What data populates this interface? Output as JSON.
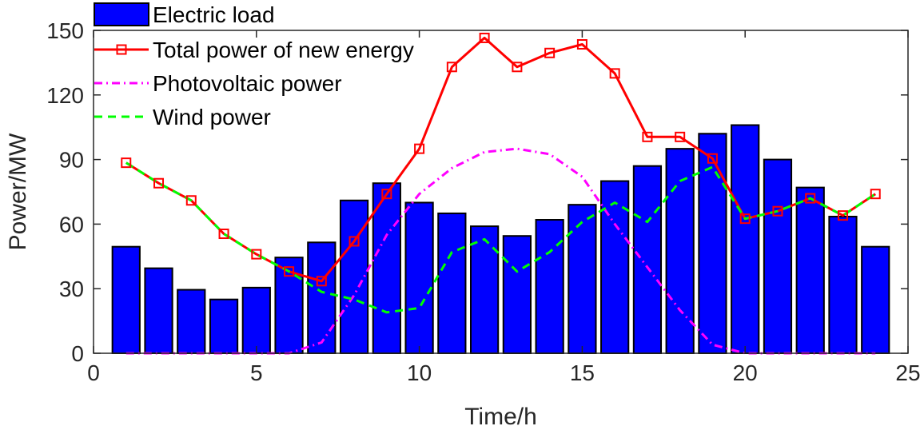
{
  "chart_data": {
    "type": "bar",
    "title": "",
    "xlabel": "Time/h",
    "ylabel": "Power/MW",
    "xlim": [
      0,
      25
    ],
    "ylim": [
      0,
      150
    ],
    "xticks": [
      0,
      5,
      10,
      15,
      20,
      25
    ],
    "yticks": [
      0,
      30,
      60,
      90,
      120,
      150
    ],
    "grid": false,
    "legend_position": "top-left",
    "x": [
      1,
      2,
      3,
      4,
      5,
      6,
      7,
      8,
      9,
      10,
      11,
      12,
      13,
      14,
      15,
      16,
      17,
      18,
      19,
      20,
      21,
      22,
      23,
      24
    ],
    "series": [
      {
        "name": "Electric load",
        "kind": "bar",
        "color": "#0000ff",
        "values": [
          49.5,
          39.5,
          29.5,
          25,
          30.5,
          44.5,
          51.5,
          71,
          79,
          70,
          65,
          59,
          54.5,
          62,
          69,
          80,
          87,
          95,
          102,
          106,
          90,
          77,
          63.5,
          49.5
        ]
      },
      {
        "name": "Total power of new energy",
        "kind": "line-marker",
        "color": "#ff0000",
        "values": [
          88.5,
          79,
          71,
          55.5,
          46,
          38,
          33.5,
          52,
          74,
          95,
          133,
          146.5,
          133,
          139.5,
          143.5,
          130,
          100.5,
          100.5,
          90.5,
          62.5,
          66,
          72,
          64,
          74
        ]
      },
      {
        "name": "Photovoltaic power",
        "kind": "dashdot",
        "color": "#ff00ff",
        "values": [
          0,
          0,
          0,
          0,
          0,
          0,
          5,
          27,
          55,
          74,
          86,
          93.5,
          95,
          92.5,
          82,
          60,
          40,
          20,
          4,
          0,
          0,
          0,
          0,
          0
        ]
      },
      {
        "name": "Wind power",
        "kind": "dash",
        "color": "#00ff00",
        "values": [
          88.5,
          79,
          71,
          55.5,
          46,
          38,
          28.5,
          25,
          19,
          21,
          47,
          53,
          38,
          47,
          61,
          70,
          61,
          80,
          86.5,
          62.5,
          66,
          72,
          64,
          74
        ]
      }
    ]
  }
}
